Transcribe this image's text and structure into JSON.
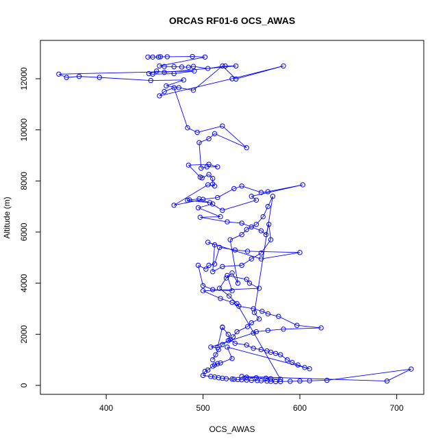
{
  "chart_data": {
    "type": "line",
    "title": "ORCAS RF01-6 OCS_AWAS",
    "xlabel": "OCS_AWAS",
    "ylabel": "Altitude (m)",
    "xlim": [
      332,
      728
    ],
    "ylim": [
      -350,
      13500
    ],
    "xticks": [
      400,
      500,
      600,
      700
    ],
    "yticks": [
      0,
      2000,
      4000,
      6000,
      8000,
      10000,
      12000
    ],
    "xtick_labels": [
      "400",
      "500",
      "600",
      "700"
    ],
    "ytick_labels": [
      "0",
      "2000",
      "4000",
      "6000",
      "8000",
      "10000",
      "12000"
    ],
    "grid": false,
    "series": [
      {
        "color": "#0000ff",
        "marker": "open-circle",
        "x": [
          443,
          448,
          454,
          456,
          463,
          489,
          502,
          455,
          460,
          470,
          478,
          485,
          490,
          505,
          523,
          534,
          460,
          452,
          444,
          448,
          470,
          491,
          351,
          359,
          372,
          393,
          446,
          480,
          462,
          475,
          490,
          520,
          534,
          583,
          530,
          455,
          460,
          470,
          484,
          494,
          520,
          545,
          512,
          506,
          496,
          498,
          504,
          515,
          506,
          485,
          497,
          499,
          506,
          510,
          510,
          512,
          505,
          470,
          500,
          515,
          532,
          540,
          560,
          567,
          603,
          550,
          555,
          520,
          507,
          484,
          486,
          496,
          510,
          495,
          518,
          497,
          525,
          540,
          550,
          560,
          565,
          568,
          570,
          560,
          550,
          540,
          520,
          510,
          512,
          505,
          560,
          600,
          546,
          533,
          517,
          512,
          506,
          503,
          495,
          500,
          510,
          530,
          525,
          545,
          548,
          558,
          500,
          518,
          530,
          537,
          552,
          561,
          567,
          578,
          597,
          622,
          583,
          567,
          555,
          552,
          508,
          515,
          520,
          520,
          526,
          528,
          533,
          545,
          552,
          560,
          566,
          570,
          575,
          580,
          587,
          592,
          598,
          605,
          610,
          525,
          530,
          518,
          512,
          515,
          510,
          505,
          502,
          500,
          508,
          512,
          516,
          520,
          524,
          530,
          532,
          536,
          540,
          545,
          550,
          556,
          560,
          566,
          570,
          575,
          580,
          590,
          600,
          610,
          628,
          715,
          690,
          540,
          545,
          555,
          565,
          570,
          580,
          535,
          527,
          517,
          524,
          530,
          536,
          528,
          540,
          545,
          555,
          562,
          567,
          572,
          553,
          558,
          550,
          546,
          535,
          531,
          526,
          520,
          516,
          513,
          510
        ],
        "y": [
          12850,
          12850,
          12850,
          12860,
          12860,
          12870,
          12850,
          12500,
          12480,
          12470,
          12460,
          12450,
          12480,
          12400,
          12500,
          12500,
          12250,
          12300,
          12200,
          12180,
          12200,
          12300,
          12180,
          12050,
          12090,
          12050,
          11930,
          11950,
          11720,
          11650,
          11550,
          12500,
          11990,
          12500,
          12000,
          11330,
          11500,
          11650,
          10080,
          9900,
          10150,
          9300,
          9850,
          9650,
          9500,
          8500,
          8550,
          8550,
          8650,
          8620,
          8150,
          8120,
          8250,
          8100,
          7880,
          7800,
          7850,
          7050,
          7280,
          7350,
          7700,
          7800,
          7550,
          7580,
          7850,
          7400,
          7250,
          6850,
          7150,
          7240,
          7260,
          7300,
          7100,
          6950,
          6600,
          6580,
          6400,
          6350,
          6200,
          6050,
          5900,
          6300,
          5700,
          5180,
          4950,
          4700,
          4650,
          4450,
          5500,
          5600,
          4950,
          5200,
          5250,
          5300,
          5400,
          4750,
          4700,
          4550,
          4700,
          3900,
          3750,
          3700,
          4300,
          4150,
          4000,
          3800,
          3700,
          3400,
          3250,
          3100,
          3000,
          2900,
          2800,
          2700,
          2350,
          2250,
          2200,
          2150,
          2100,
          2050,
          1500,
          1480,
          2280,
          2270,
          2000,
          1800,
          1650,
          1580,
          1450,
          1400,
          1350,
          1300,
          1250,
          1200,
          1000,
          900,
          800,
          700,
          650,
          1500,
          1050,
          880,
          800,
          850,
          750,
          600,
          550,
          390,
          350,
          330,
          300,
          280,
          260,
          250,
          240,
          230,
          220,
          210,
          200,
          190,
          180,
          170,
          160,
          150,
          150,
          160,
          170,
          180,
          200,
          640,
          170,
          350,
          320,
          300,
          280,
          260,
          240,
          3200,
          3500,
          3800,
          4200,
          4400,
          4000,
          5700,
          5900,
          6100,
          6300,
          6600,
          7000,
          7400,
          2850,
          2600,
          2450,
          2300,
          2100,
          1900,
          1750,
          1600,
          1400,
          1200,
          1000
        ]
      }
    ]
  }
}
